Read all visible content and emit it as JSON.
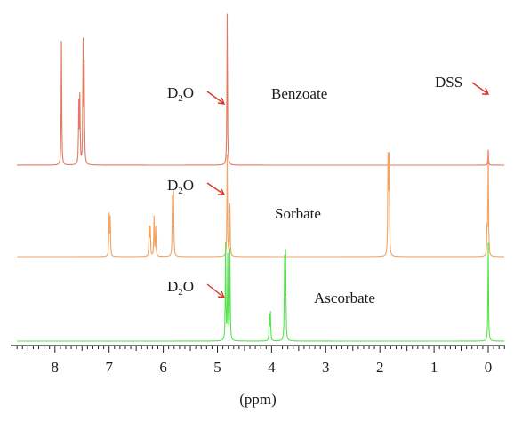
{
  "chart_data": {
    "type": "line",
    "xlabel": "(ppm)",
    "xlim": [
      8.7,
      -0.3
    ],
    "x_reversed": true,
    "xticks": [
      8,
      7,
      6,
      5,
      4,
      3,
      2,
      1,
      0
    ],
    "tick_labels": [
      "8",
      "7",
      "6",
      "5",
      "4",
      "3",
      "2",
      "1",
      "0"
    ],
    "spectra": [
      {
        "label": "Benzoate",
        "color": "#e2785f",
        "peaks": [
          {
            "ppm": 7.88,
            "height": 0.82
          },
          {
            "ppm": 7.56,
            "height": 0.4
          },
          {
            "ppm": 7.54,
            "height": 0.48
          },
          {
            "ppm": 7.48,
            "height": 0.84
          },
          {
            "ppm": 7.46,
            "height": 0.62
          },
          {
            "ppm": 4.82,
            "height": 1.0
          },
          {
            "ppm": 0.0,
            "height": 0.1
          }
        ]
      },
      {
        "label": "Sorbate",
        "color": "#f3a362",
        "peaks": [
          {
            "ppm": 7.0,
            "height": 0.4
          },
          {
            "ppm": 6.98,
            "height": 0.4
          },
          {
            "ppm": 6.26,
            "height": 0.3
          },
          {
            "ppm": 6.24,
            "height": 0.3
          },
          {
            "ppm": 6.17,
            "height": 0.4
          },
          {
            "ppm": 6.14,
            "height": 0.3
          },
          {
            "ppm": 5.83,
            "height": 0.6
          },
          {
            "ppm": 5.81,
            "height": 0.6
          },
          {
            "ppm": 4.82,
            "height": 1.0
          },
          {
            "ppm": 4.77,
            "height": 0.52
          },
          {
            "ppm": 1.85,
            "height": 1.02
          },
          {
            "ppm": 1.83,
            "height": 1.02
          },
          {
            "ppm": 0.02,
            "height": 0.28
          },
          {
            "ppm": 0.0,
            "height": 1.0
          }
        ]
      },
      {
        "label": "Ascorbate",
        "color": "#55e34d",
        "peaks": [
          {
            "ppm": 4.85,
            "height": 1.0
          },
          {
            "ppm": 4.81,
            "height": 0.9
          },
          {
            "ppm": 4.77,
            "height": 0.95
          },
          {
            "ppm": 4.04,
            "height": 0.28
          },
          {
            "ppm": 4.02,
            "height": 0.28
          },
          {
            "ppm": 3.76,
            "height": 0.88
          },
          {
            "ppm": 3.74,
            "height": 0.88
          },
          {
            "ppm": 0.0,
            "height": 1.0
          }
        ]
      }
    ],
    "annotations": [
      {
        "text": "D",
        "sub": "2",
        "tail": "O",
        "target": "Benzoate D2O peak"
      },
      {
        "text": "D",
        "sub": "2",
        "tail": "O",
        "target": "Sorbate D2O peak"
      },
      {
        "text": "D",
        "sub": "2",
        "tail": "O",
        "target": "Ascorbate D2O peak"
      },
      {
        "text": "DSS",
        "target": "DSS reference peak"
      }
    ]
  }
}
